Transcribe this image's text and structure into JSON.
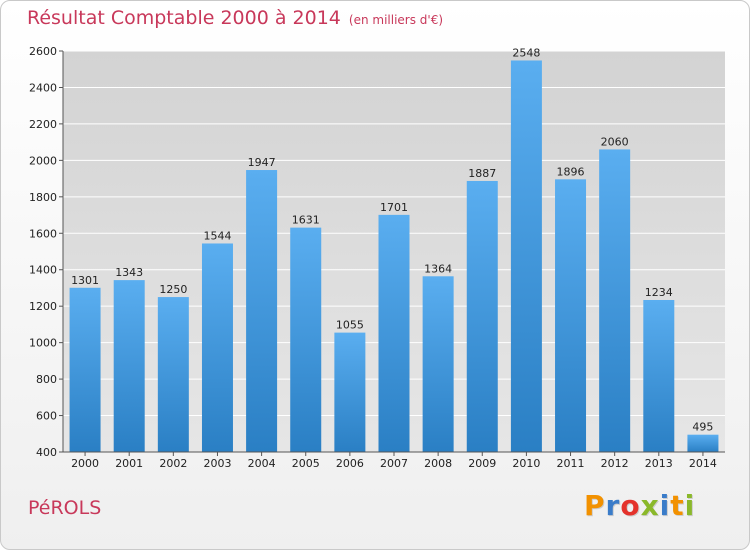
{
  "chart_data": {
    "type": "bar",
    "title": "Résultat Comptable 2000 à 2014",
    "subtitle": "(en milliers d'€)",
    "categories": [
      "2000",
      "2001",
      "2002",
      "2003",
      "2004",
      "2005",
      "2006",
      "2007",
      "2008",
      "2009",
      "2010",
      "2011",
      "2012",
      "2013",
      "2014"
    ],
    "values": [
      1301,
      1343,
      1250,
      1544,
      1947,
      1631,
      1055,
      1701,
      1364,
      1887,
      2548,
      1896,
      2060,
      1234,
      495
    ],
    "ylim": [
      400,
      2600
    ],
    "yticks": [
      400,
      600,
      800,
      1000,
      1200,
      1400,
      1600,
      1800,
      2000,
      2200,
      2400,
      2600
    ],
    "xlabel": "",
    "ylabel": "",
    "grid": true
  },
  "footer": {
    "commune": "PéROLS",
    "brand": "Proxiti"
  },
  "colors": {
    "title": "#c8385a",
    "bar_top": "#5aaef0",
    "bar_bottom": "#2a7fc4",
    "grid": "#ffffff",
    "plot_bg": "#d9d9d9",
    "brand_letters": [
      "#f29100",
      "#3a7cc9",
      "#e4322b",
      "#8ab82a",
      "#3a7cc9",
      "#f29100",
      "#8ab82a"
    ]
  }
}
